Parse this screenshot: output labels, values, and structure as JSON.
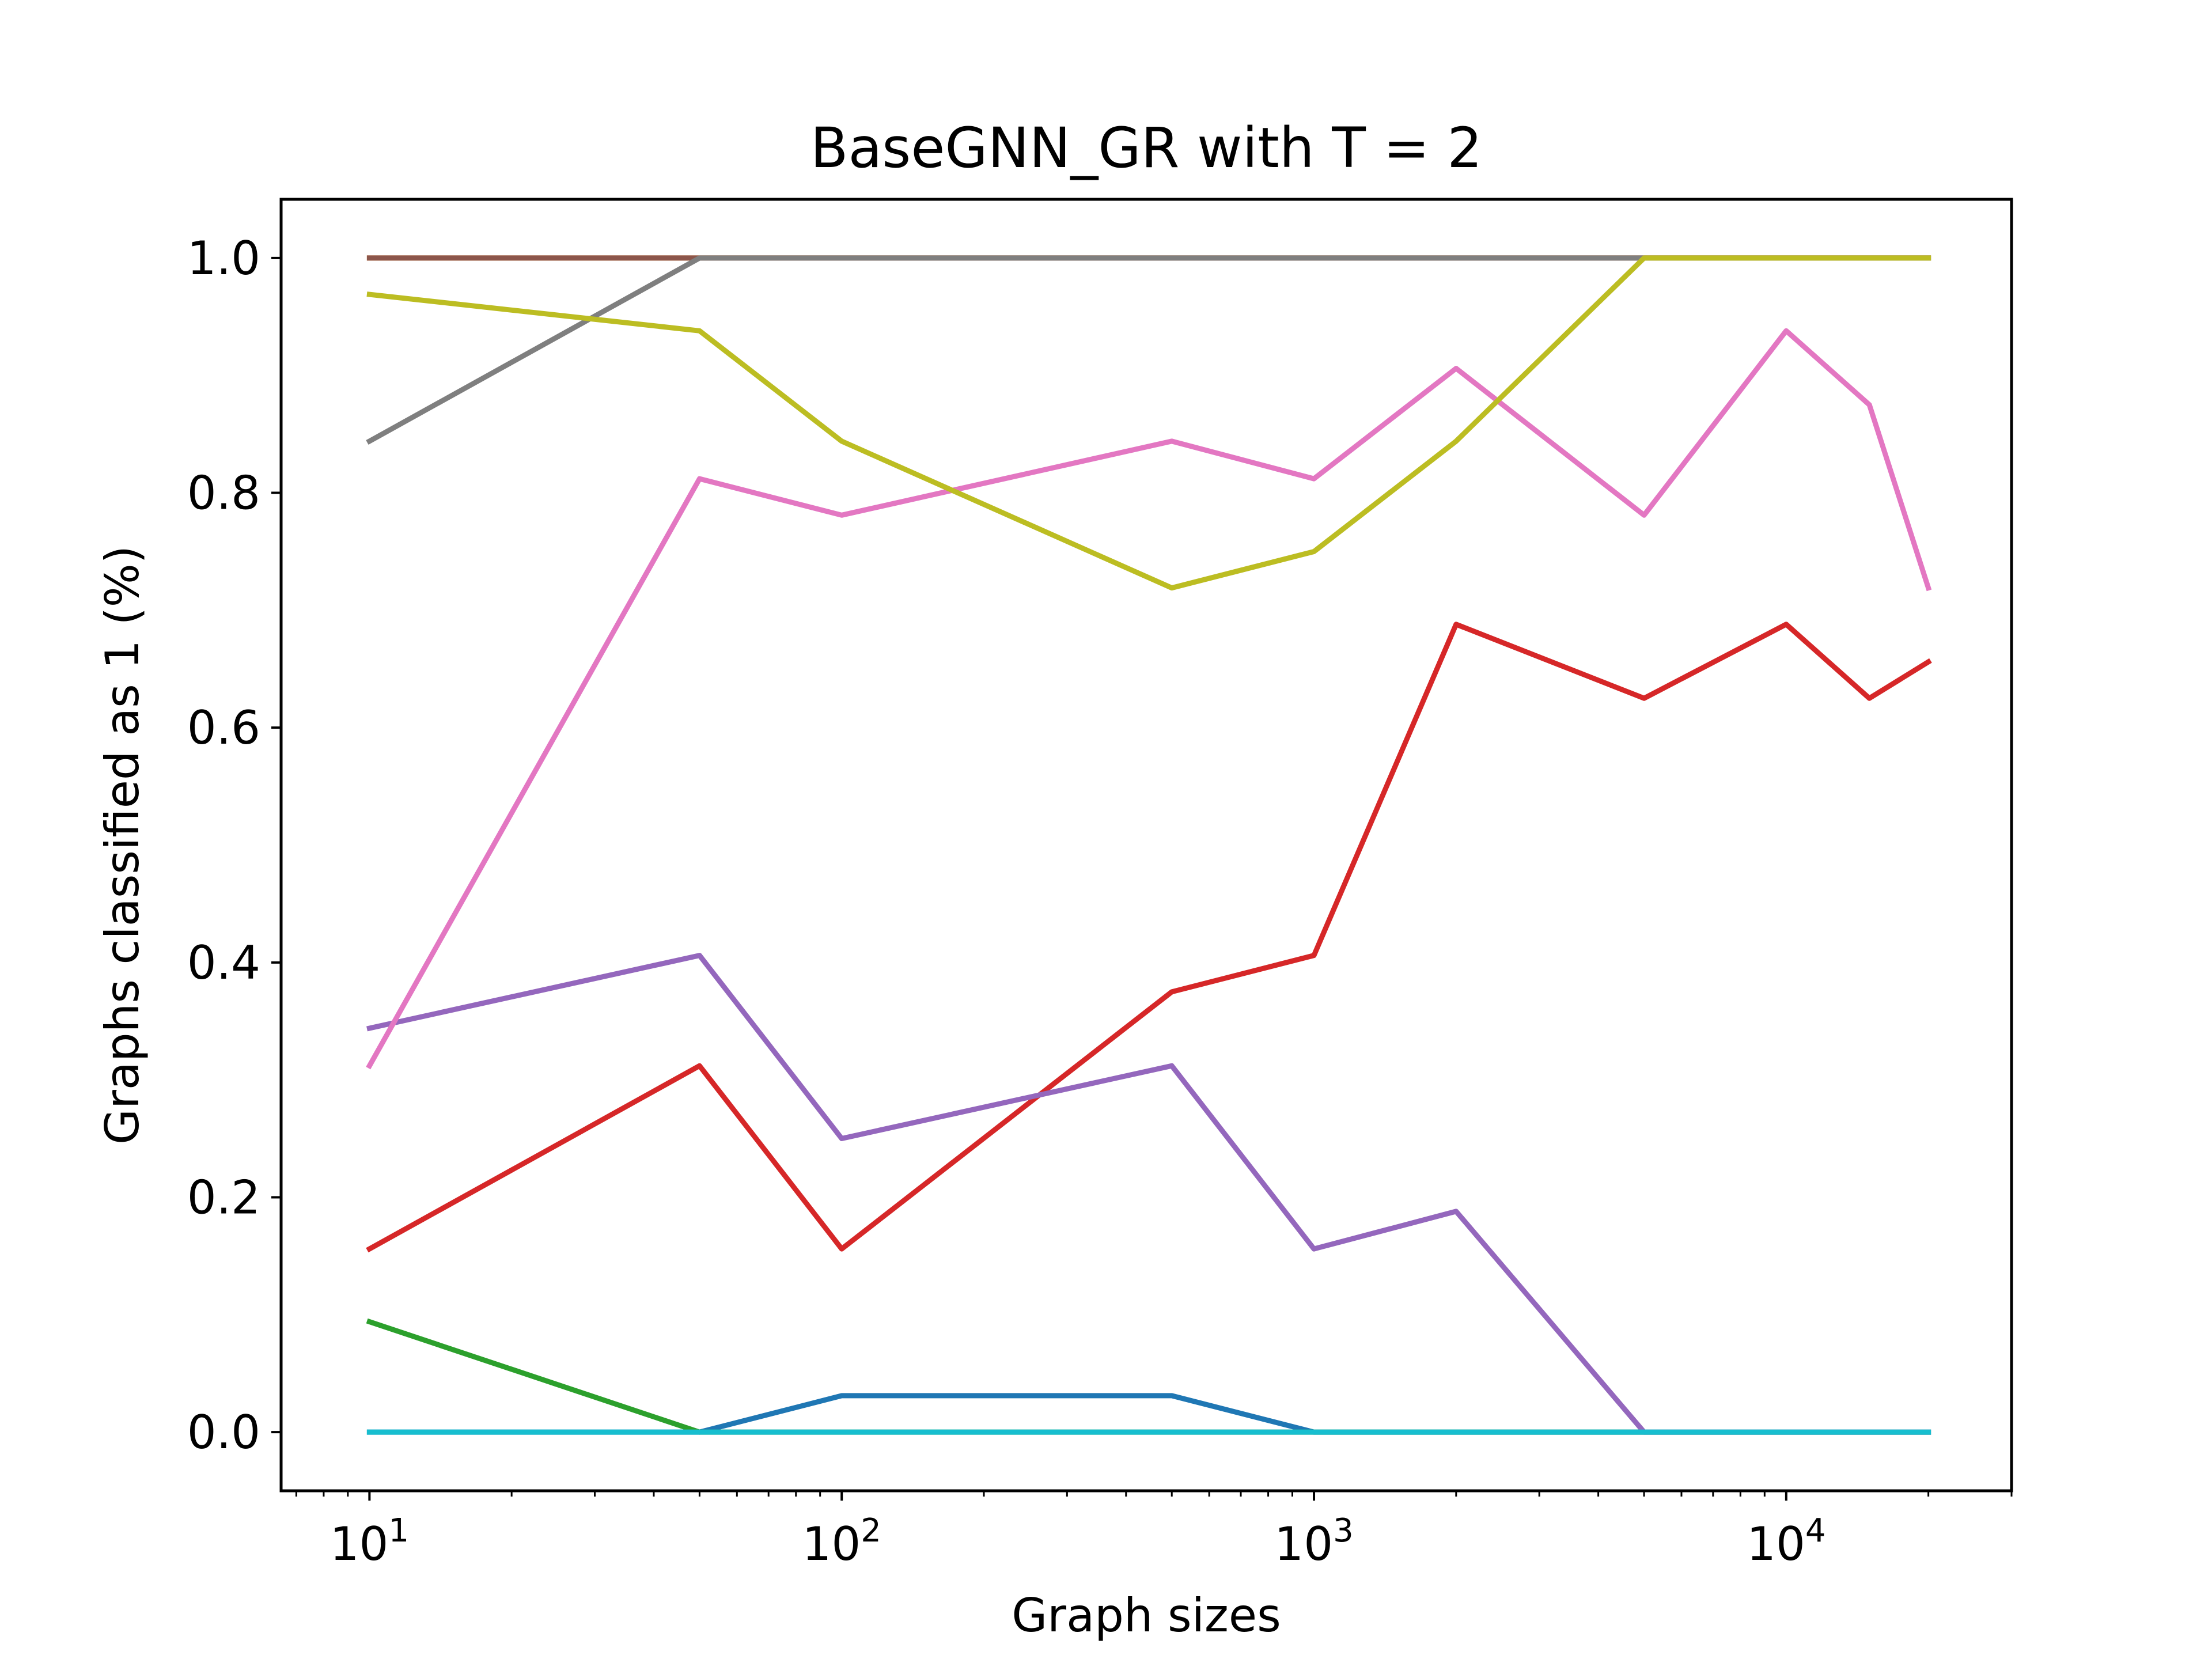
{
  "chart_data": {
    "type": "line",
    "title": "BaseGNN_GR with T = 2",
    "xlabel": "Graph sizes",
    "ylabel": "Graphs classified as 1 (%)",
    "xscale": "log",
    "xlim": [
      6.5,
      30000
    ],
    "ylim": [
      -0.05,
      1.05
    ],
    "grid": false,
    "x": [
      10,
      50,
      100,
      500,
      1000,
      2000,
      5000,
      10000,
      15000,
      20000
    ],
    "yticks": [
      {
        "value": 0.0,
        "label": "0.0"
      },
      {
        "value": 0.2,
        "label": "0.2"
      },
      {
        "value": 0.4,
        "label": "0.4"
      },
      {
        "value": 0.6,
        "label": "0.6"
      },
      {
        "value": 0.8,
        "label": "0.8"
      },
      {
        "value": 1.0,
        "label": "1.0"
      }
    ],
    "xticks": [
      {
        "value": 10,
        "base": "10",
        "exp": "1"
      },
      {
        "value": 100,
        "base": "10",
        "exp": "2"
      },
      {
        "value": 1000,
        "base": "10",
        "exp": "3"
      },
      {
        "value": 10000,
        "base": "10",
        "exp": "4"
      }
    ],
    "series": [
      {
        "color": "#1f77b4",
        "values": [
          0.0,
          0.0,
          0.031,
          0.031,
          0.0,
          0.0,
          0.0,
          0.0,
          0.0,
          0.0
        ]
      },
      {
        "color": "#ff7f0e",
        "values": [
          1.0,
          1.0,
          1.0,
          1.0,
          1.0,
          1.0,
          1.0,
          1.0,
          1.0,
          1.0
        ]
      },
      {
        "color": "#2ca02c",
        "values": [
          0.094,
          0.0,
          0.0,
          0.0,
          0.0,
          0.0,
          0.0,
          0.0,
          0.0,
          0.0
        ]
      },
      {
        "color": "#d62728",
        "values": [
          0.156,
          0.312,
          0.156,
          0.375,
          0.406,
          0.688,
          0.625,
          0.688,
          0.625,
          0.656
        ]
      },
      {
        "color": "#9467bd",
        "values": [
          0.344,
          0.406,
          0.25,
          0.312,
          0.156,
          0.188,
          0.0,
          0.0,
          0.0,
          0.0
        ]
      },
      {
        "color": "#8c564b",
        "values": [
          1.0,
          1.0,
          1.0,
          1.0,
          1.0,
          1.0,
          1.0,
          1.0,
          1.0,
          1.0
        ]
      },
      {
        "color": "#e377c2",
        "values": [
          0.312,
          0.812,
          0.781,
          0.844,
          0.812,
          0.906,
          0.781,
          0.938,
          0.875,
          0.719
        ]
      },
      {
        "color": "#7f7f7f",
        "values": [
          0.844,
          1.0,
          1.0,
          1.0,
          1.0,
          1.0,
          1.0,
          1.0,
          1.0,
          1.0
        ]
      },
      {
        "color": "#bcbd22",
        "values": [
          0.969,
          0.938,
          0.844,
          0.719,
          0.75,
          0.844,
          1.0,
          1.0,
          1.0,
          1.0
        ]
      },
      {
        "color": "#17becf",
        "values": [
          0.0,
          0.0,
          0.0,
          0.0,
          0.0,
          0.0,
          0.0,
          0.0,
          0.0,
          0.0
        ]
      }
    ]
  }
}
